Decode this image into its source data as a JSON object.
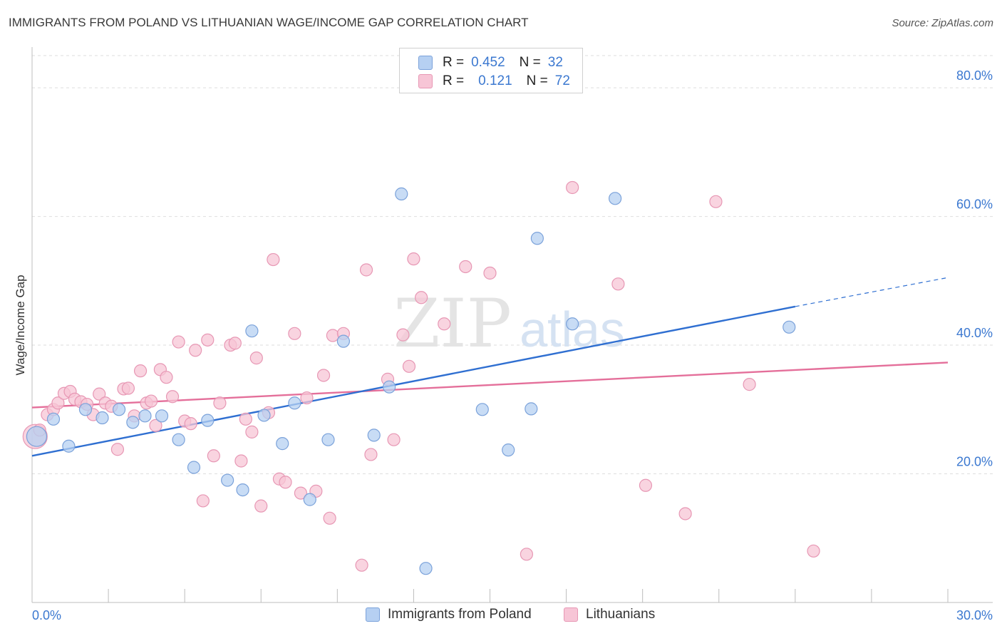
{
  "title": "IMMIGRANTS FROM POLAND VS LITHUANIAN WAGE/INCOME GAP CORRELATION CHART",
  "source": "Source: ZipAtlas.com",
  "watermark": {
    "zip": "ZIP",
    "atlas": "atlas"
  },
  "legend": {
    "rows": [
      {
        "r_label": "R =",
        "r_value": "0.452",
        "n_label": "N =",
        "n_value": "32"
      },
      {
        "r_label": "R =",
        "r_value": "0.121",
        "n_label": "N =",
        "n_value": "72"
      }
    ]
  },
  "bottom_legend": [
    "Immigrants from Poland",
    "Lithuanians"
  ],
  "colors": {
    "blue_fill": "#b6d0f2",
    "blue_stroke": "#7ba2da",
    "blue_line": "#2f6fd1",
    "pink_fill": "#f7c5d6",
    "pink_stroke": "#e797b4",
    "pink_line": "#e46f9a",
    "tick_label": "#3b78d0",
    "grid": "#dedede"
  },
  "chart_data": {
    "type": "scatter",
    "title": "IMMIGRANTS FROM POLAND VS LITHUANIAN WAGE/INCOME GAP CORRELATION CHART",
    "xlabel": "",
    "ylabel": "Wage/Income Gap",
    "xlim": [
      0,
      30
    ],
    "ylim": [
      0,
      85
    ],
    "x_tick_labels": [
      "0.0%",
      "30.0%"
    ],
    "y_ticks": [
      20,
      40,
      60,
      80
    ],
    "y_tick_labels": [
      "20.0%",
      "40.0%",
      "60.0%",
      "80.0%"
    ],
    "grid": "horizontal dashed",
    "legend_position": "top-center",
    "series": [
      {
        "name": "Immigrants from Poland",
        "r": 0.452,
        "n": 32,
        "points": [
          [
            0.15,
            25.8
          ],
          [
            0.7,
            28.5
          ],
          [
            1.2,
            24.3
          ],
          [
            1.75,
            30.0
          ],
          [
            2.3,
            28.7
          ],
          [
            2.85,
            30.0
          ],
          [
            3.3,
            28.0
          ],
          [
            3.7,
            29.0
          ],
          [
            4.25,
            29.0
          ],
          [
            4.8,
            25.3
          ],
          [
            5.3,
            21.0
          ],
          [
            5.75,
            28.3
          ],
          [
            6.4,
            19.0
          ],
          [
            6.9,
            17.5
          ],
          [
            7.2,
            42.2
          ],
          [
            7.6,
            29.1
          ],
          [
            8.2,
            24.7
          ],
          [
            8.6,
            31.0
          ],
          [
            9.1,
            16.0
          ],
          [
            9.7,
            25.3
          ],
          [
            10.2,
            40.6
          ],
          [
            11.2,
            26.0
          ],
          [
            11.7,
            33.5
          ],
          [
            12.1,
            63.5
          ],
          [
            12.9,
            5.3
          ],
          [
            14.75,
            30.0
          ],
          [
            15.6,
            23.7
          ],
          [
            16.35,
            30.1
          ],
          [
            16.55,
            56.6
          ],
          [
            17.7,
            43.3
          ],
          [
            19.1,
            62.8
          ],
          [
            24.8,
            42.8
          ]
        ],
        "trend": {
          "x0": 0.0,
          "y0": 22.8,
          "x1": 25.0,
          "y1": 46.0,
          "dash_x1": 30.0,
          "dash_y1": 50.5
        }
      },
      {
        "name": "Lithuanians",
        "r": 0.121,
        "n": 72,
        "points": [
          [
            0.1,
            25.8
          ],
          [
            0.25,
            26.8
          ],
          [
            0.5,
            29.2
          ],
          [
            0.7,
            30.0
          ],
          [
            0.85,
            31.0
          ],
          [
            1.05,
            32.5
          ],
          [
            1.25,
            32.8
          ],
          [
            1.4,
            31.6
          ],
          [
            1.6,
            31.2
          ],
          [
            1.8,
            30.8
          ],
          [
            2.0,
            29.2
          ],
          [
            2.2,
            32.4
          ],
          [
            2.4,
            31.0
          ],
          [
            2.6,
            30.5
          ],
          [
            2.8,
            23.8
          ],
          [
            3.0,
            33.2
          ],
          [
            3.15,
            33.3
          ],
          [
            3.35,
            29.0
          ],
          [
            3.55,
            36.0
          ],
          [
            3.75,
            31.0
          ],
          [
            3.9,
            31.3
          ],
          [
            4.05,
            27.5
          ],
          [
            4.2,
            36.2
          ],
          [
            4.4,
            35.0
          ],
          [
            4.6,
            32.0
          ],
          [
            4.8,
            40.5
          ],
          [
            5.0,
            28.2
          ],
          [
            5.2,
            27.8
          ],
          [
            5.35,
            39.2
          ],
          [
            5.6,
            15.8
          ],
          [
            5.75,
            40.8
          ],
          [
            5.95,
            22.8
          ],
          [
            6.15,
            31.0
          ],
          [
            6.5,
            40.0
          ],
          [
            6.65,
            40.3
          ],
          [
            6.85,
            22.0
          ],
          [
            7.0,
            28.5
          ],
          [
            7.2,
            26.5
          ],
          [
            7.35,
            38.0
          ],
          [
            7.5,
            15.0
          ],
          [
            7.75,
            29.5
          ],
          [
            7.9,
            53.3
          ],
          [
            8.1,
            19.2
          ],
          [
            8.3,
            18.7
          ],
          [
            8.6,
            41.8
          ],
          [
            8.8,
            17.0
          ],
          [
            9.0,
            31.8
          ],
          [
            9.3,
            17.3
          ],
          [
            9.55,
            35.3
          ],
          [
            9.75,
            13.1
          ],
          [
            9.85,
            41.5
          ],
          [
            10.2,
            41.8
          ],
          [
            10.8,
            5.8
          ],
          [
            10.95,
            51.7
          ],
          [
            11.1,
            23.0
          ],
          [
            11.65,
            34.7
          ],
          [
            11.85,
            25.3
          ],
          [
            12.15,
            41.6
          ],
          [
            12.35,
            36.7
          ],
          [
            12.5,
            53.4
          ],
          [
            12.75,
            47.4
          ],
          [
            13.5,
            43.3
          ],
          [
            14.2,
            52.2
          ],
          [
            15.0,
            51.2
          ],
          [
            16.2,
            7.5
          ],
          [
            17.7,
            64.5
          ],
          [
            19.2,
            49.5
          ],
          [
            20.1,
            18.2
          ],
          [
            21.4,
            13.8
          ],
          [
            22.4,
            62.3
          ],
          [
            23.5,
            33.9
          ],
          [
            25.6,
            8.0
          ]
        ],
        "trend": {
          "x0": 0.0,
          "y0": 30.3,
          "x1": 30.0,
          "y1": 37.3
        }
      }
    ]
  }
}
